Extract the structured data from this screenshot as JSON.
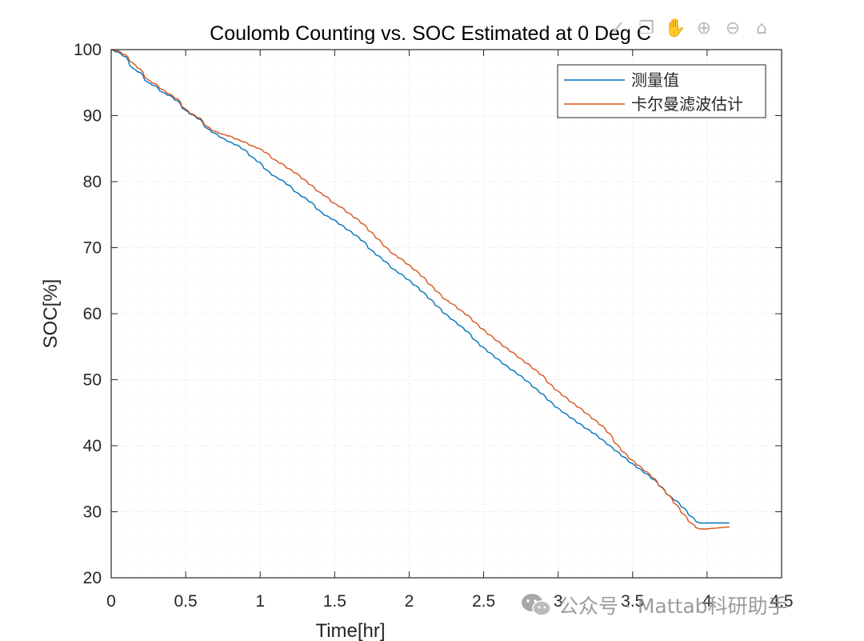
{
  "toolbar": {
    "icons": [
      "home-icon",
      "zoom-out-icon",
      "zoom-in-icon",
      "pan-icon",
      "brush-icon",
      "datatip-icon"
    ],
    "glyphs": [
      "⌂",
      "⊖",
      "⊕",
      "✋",
      "❐",
      "✓"
    ]
  },
  "watermark": {
    "text": "公众号 · Mattab科研助手"
  },
  "chart_data": {
    "type": "line",
    "title": "Coulomb Counting vs. SOC Estimated at 0 Deg C",
    "xlabel": "Time[hr]",
    "ylabel": "SOC[%]",
    "xlim": [
      0,
      4.5
    ],
    "ylim": [
      20,
      100
    ],
    "xticks": [
      0,
      0.5,
      1,
      1.5,
      2,
      2.5,
      3,
      3.5,
      4,
      4.5
    ],
    "xtick_labels": [
      "0",
      "0.5",
      "1",
      "1.5",
      "2",
      "2.5",
      "3",
      "3.5",
      "4",
      "4.5"
    ],
    "yticks": [
      20,
      30,
      40,
      50,
      60,
      70,
      80,
      90,
      100
    ],
    "ytick_labels": [
      "20",
      "30",
      "40",
      "50",
      "60",
      "70",
      "80",
      "90",
      "100"
    ],
    "grid": true,
    "legend_position": "top-right",
    "series": [
      {
        "name": "测量值",
        "color": "#0072BD",
        "x": [
          0,
          0.05,
          0.1,
          0.15,
          0.2,
          0.25,
          0.3,
          0.35,
          0.4,
          0.45,
          0.5,
          0.55,
          0.6,
          0.65,
          0.7,
          0.75,
          0.8,
          0.85,
          0.9,
          0.95,
          1.0,
          1.05,
          1.1,
          1.15,
          1.2,
          1.25,
          1.3,
          1.35,
          1.4,
          1.45,
          1.5,
          1.55,
          1.6,
          1.65,
          1.7,
          1.75,
          1.8,
          1.85,
          1.9,
          1.95,
          2.0,
          2.05,
          2.1,
          2.15,
          2.2,
          2.25,
          2.3,
          2.35,
          2.4,
          2.45,
          2.5,
          2.55,
          2.6,
          2.65,
          2.7,
          2.75,
          2.8,
          2.85,
          2.9,
          2.95,
          3.0,
          3.05,
          3.1,
          3.15,
          3.2,
          3.25,
          3.3,
          3.35,
          3.4,
          3.45,
          3.5,
          3.55,
          3.6,
          3.65,
          3.7,
          3.75,
          3.8,
          3.85,
          3.9,
          3.95,
          4.0,
          4.05,
          4.1,
          4.15
        ],
        "y": [
          100,
          99.6,
          98.9,
          97.1,
          96.5,
          95.0,
          94.5,
          93.5,
          93.0,
          92.2,
          90.8,
          90.1,
          89.4,
          88.0,
          87.3,
          86.6,
          86.0,
          85.5,
          84.8,
          83.7,
          82.9,
          81.7,
          80.8,
          80.2,
          79.4,
          78.3,
          77.6,
          76.8,
          75.6,
          74.8,
          74.2,
          73.4,
          72.6,
          71.8,
          70.9,
          69.6,
          68.7,
          67.8,
          66.7,
          66.0,
          65.1,
          64.2,
          63.2,
          62.1,
          61.0,
          59.9,
          59.0,
          58.1,
          57.2,
          55.9,
          54.9,
          54.0,
          53.1,
          52.2,
          51.4,
          50.6,
          49.7,
          48.7,
          47.8,
          46.7,
          45.7,
          44.9,
          44.1,
          43.3,
          42.5,
          41.8,
          40.9,
          40.0,
          39.1,
          38.2,
          37.3,
          36.5,
          35.7,
          34.8,
          33.7,
          32.4,
          31.6,
          30.5,
          29.2,
          28.3,
          28.3,
          28.3,
          28.3,
          28.3
        ]
      },
      {
        "name": "卡尔曼滤波估计",
        "color": "#D95319",
        "x": [
          0,
          0.05,
          0.1,
          0.15,
          0.2,
          0.25,
          0.3,
          0.35,
          0.4,
          0.45,
          0.5,
          0.55,
          0.6,
          0.65,
          0.7,
          0.75,
          0.8,
          0.85,
          0.9,
          0.95,
          1.0,
          1.05,
          1.1,
          1.15,
          1.2,
          1.25,
          1.3,
          1.35,
          1.4,
          1.45,
          1.5,
          1.55,
          1.6,
          1.65,
          1.7,
          1.75,
          1.8,
          1.85,
          1.9,
          1.95,
          2.0,
          2.05,
          2.1,
          2.15,
          2.2,
          2.25,
          2.3,
          2.35,
          2.4,
          2.45,
          2.5,
          2.55,
          2.6,
          2.65,
          2.7,
          2.75,
          2.8,
          2.85,
          2.9,
          2.95,
          3.0,
          3.05,
          3.1,
          3.15,
          3.2,
          3.25,
          3.3,
          3.35,
          3.4,
          3.45,
          3.5,
          3.55,
          3.6,
          3.65,
          3.7,
          3.75,
          3.8,
          3.85,
          3.9,
          3.95,
          4.0,
          4.05,
          4.1,
          4.15
        ],
        "y": [
          100,
          99.8,
          99.2,
          97.9,
          97.0,
          95.4,
          94.8,
          93.9,
          93.2,
          92.5,
          91.0,
          90.2,
          89.6,
          88.3,
          87.6,
          87.2,
          86.9,
          86.4,
          86.0,
          85.4,
          85.0,
          84.3,
          83.3,
          82.7,
          81.9,
          81.2,
          80.3,
          79.4,
          78.4,
          77.7,
          76.7,
          76.1,
          75.2,
          74.4,
          73.5,
          72.3,
          71.2,
          70.0,
          69.0,
          68.3,
          67.4,
          66.5,
          65.5,
          64.3,
          63.2,
          62.1,
          61.4,
          60.5,
          59.7,
          58.6,
          57.6,
          56.7,
          55.8,
          54.9,
          54.1,
          53.2,
          52.4,
          51.5,
          50.6,
          49.3,
          48.3,
          47.4,
          46.5,
          45.7,
          44.8,
          43.9,
          43.0,
          41.8,
          40.1,
          38.9,
          37.8,
          36.9,
          36.0,
          35.0,
          33.6,
          32.4,
          31.0,
          29.5,
          28.2,
          27.4,
          27.4,
          27.5,
          27.6,
          27.7
        ]
      }
    ]
  }
}
